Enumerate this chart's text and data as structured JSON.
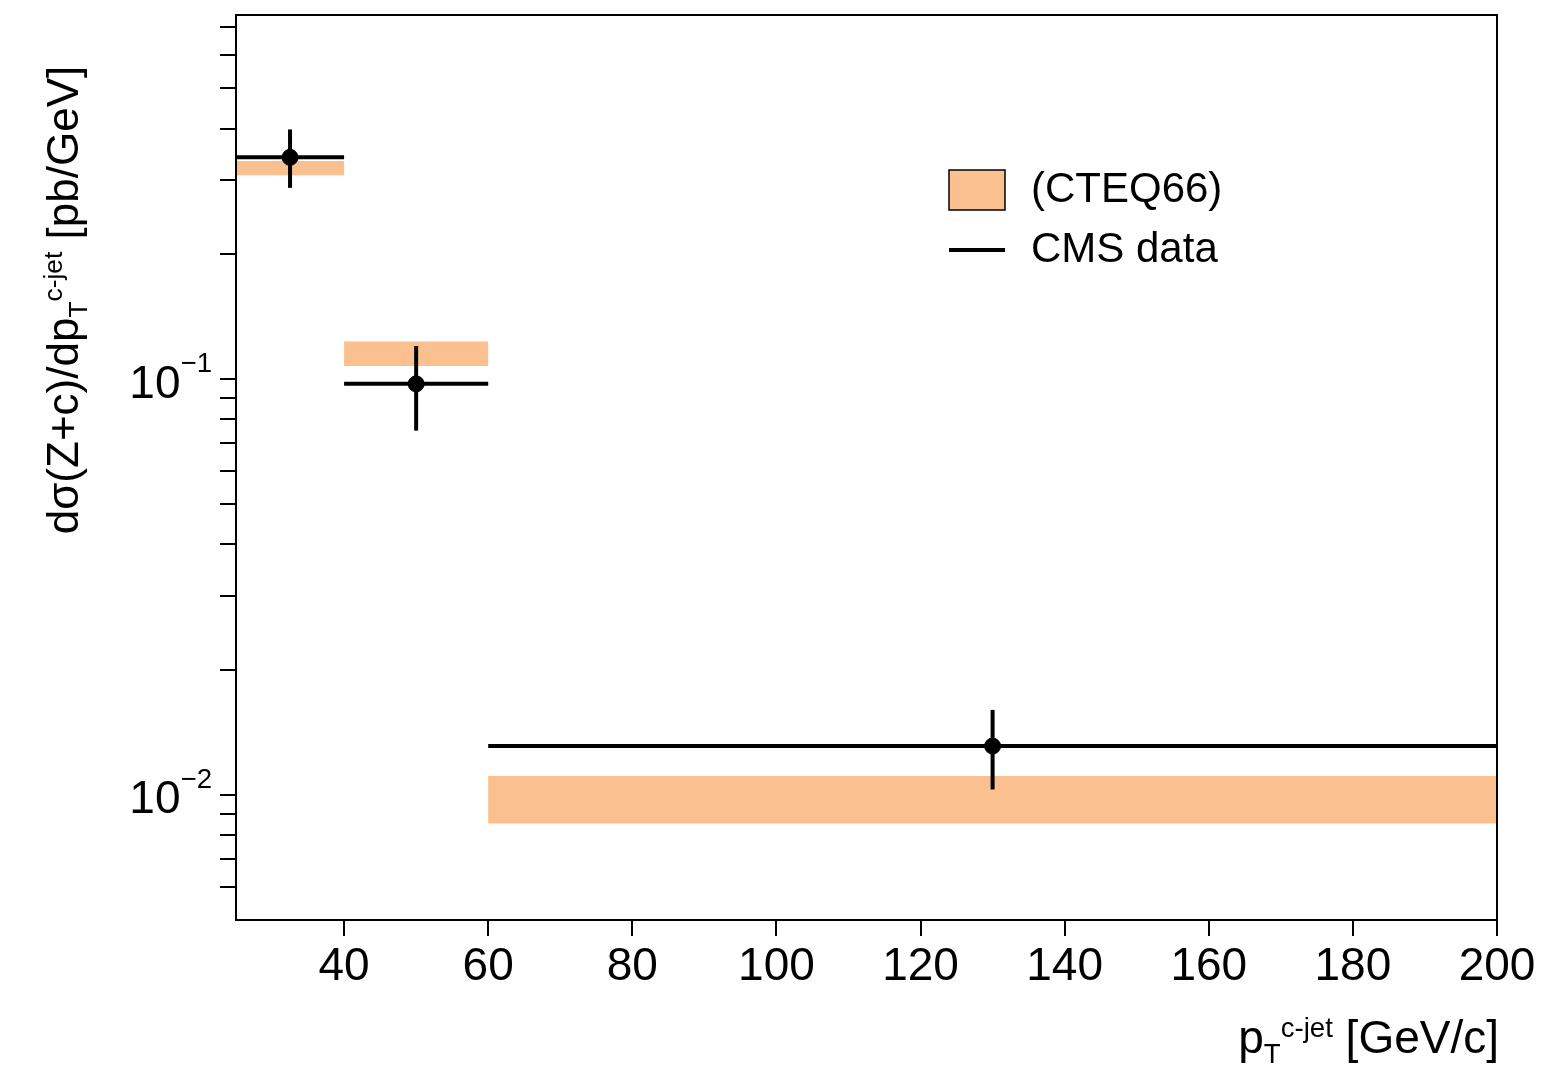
{
  "chart_data": {
    "type": "scatter",
    "xlabel": "p$_{T}$$^{c-jet}$ [GeV/c]",
    "ylabel": "dσ(Z+c)/dp$_{T}$$^{c-jet}$  [pb/GeV]",
    "log": "y",
    "grid": false,
    "legend": "top right",
    "xlim": [
      25,
      200
    ],
    "ylim": [
      0.005,
      0.75
    ],
    "xticks": [
      40,
      60,
      80,
      100,
      120,
      140,
      160,
      180,
      200
    ],
    "yticks": [
      {
        "value": 0.006,
        "label": null
      },
      {
        "value": 0.007,
        "label": null
      },
      {
        "value": 0.008,
        "label": null
      },
      {
        "value": 0.009,
        "label": null
      },
      {
        "value": 0.01,
        "label": "10$^{−2}$"
      },
      {
        "value": 0.02,
        "label": null
      },
      {
        "value": 0.03,
        "label": null
      },
      {
        "value": 0.04,
        "label": null
      },
      {
        "value": 0.05,
        "label": null
      },
      {
        "value": 0.06,
        "label": null
      },
      {
        "value": 0.07,
        "label": null
      },
      {
        "value": 0.08,
        "label": null
      },
      {
        "value": 0.09,
        "label": null
      },
      {
        "value": 0.1,
        "label": "10$^{−1}$"
      },
      {
        "value": 0.2,
        "label": null
      },
      {
        "value": 0.3,
        "label": null
      },
      {
        "value": 0.4,
        "label": null
      },
      {
        "value": 0.5,
        "label": null
      },
      {
        "value": 0.6,
        "label": null
      },
      {
        "value": 0.7,
        "label": null
      }
    ],
    "series": [
      {
        "name": "(CTEQ66)",
        "type": "histogram",
        "color": "#fbc08f",
        "bins": [
          25,
          40,
          60,
          200
        ],
        "base": [
          0.309,
          0.1074,
          0.00853
        ],
        "values": [
          0.025,
          0.0156,
          0.00257
        ]
      },
      {
        "name": "CMS data",
        "type": "scatter",
        "color": "#000000",
        "marker": "circle",
        "x": [
          32.5,
          50,
          130
        ],
        "values": [
          0.341,
          0.0973,
          0.0131
        ],
        "errors": [
          [
            0.288,
            0.398
          ],
          [
            0.0751,
            0.12
          ],
          [
            0.0103,
            0.016
          ]
        ],
        "xerrors": [
          7.5,
          10,
          70
        ]
      }
    ]
  }
}
